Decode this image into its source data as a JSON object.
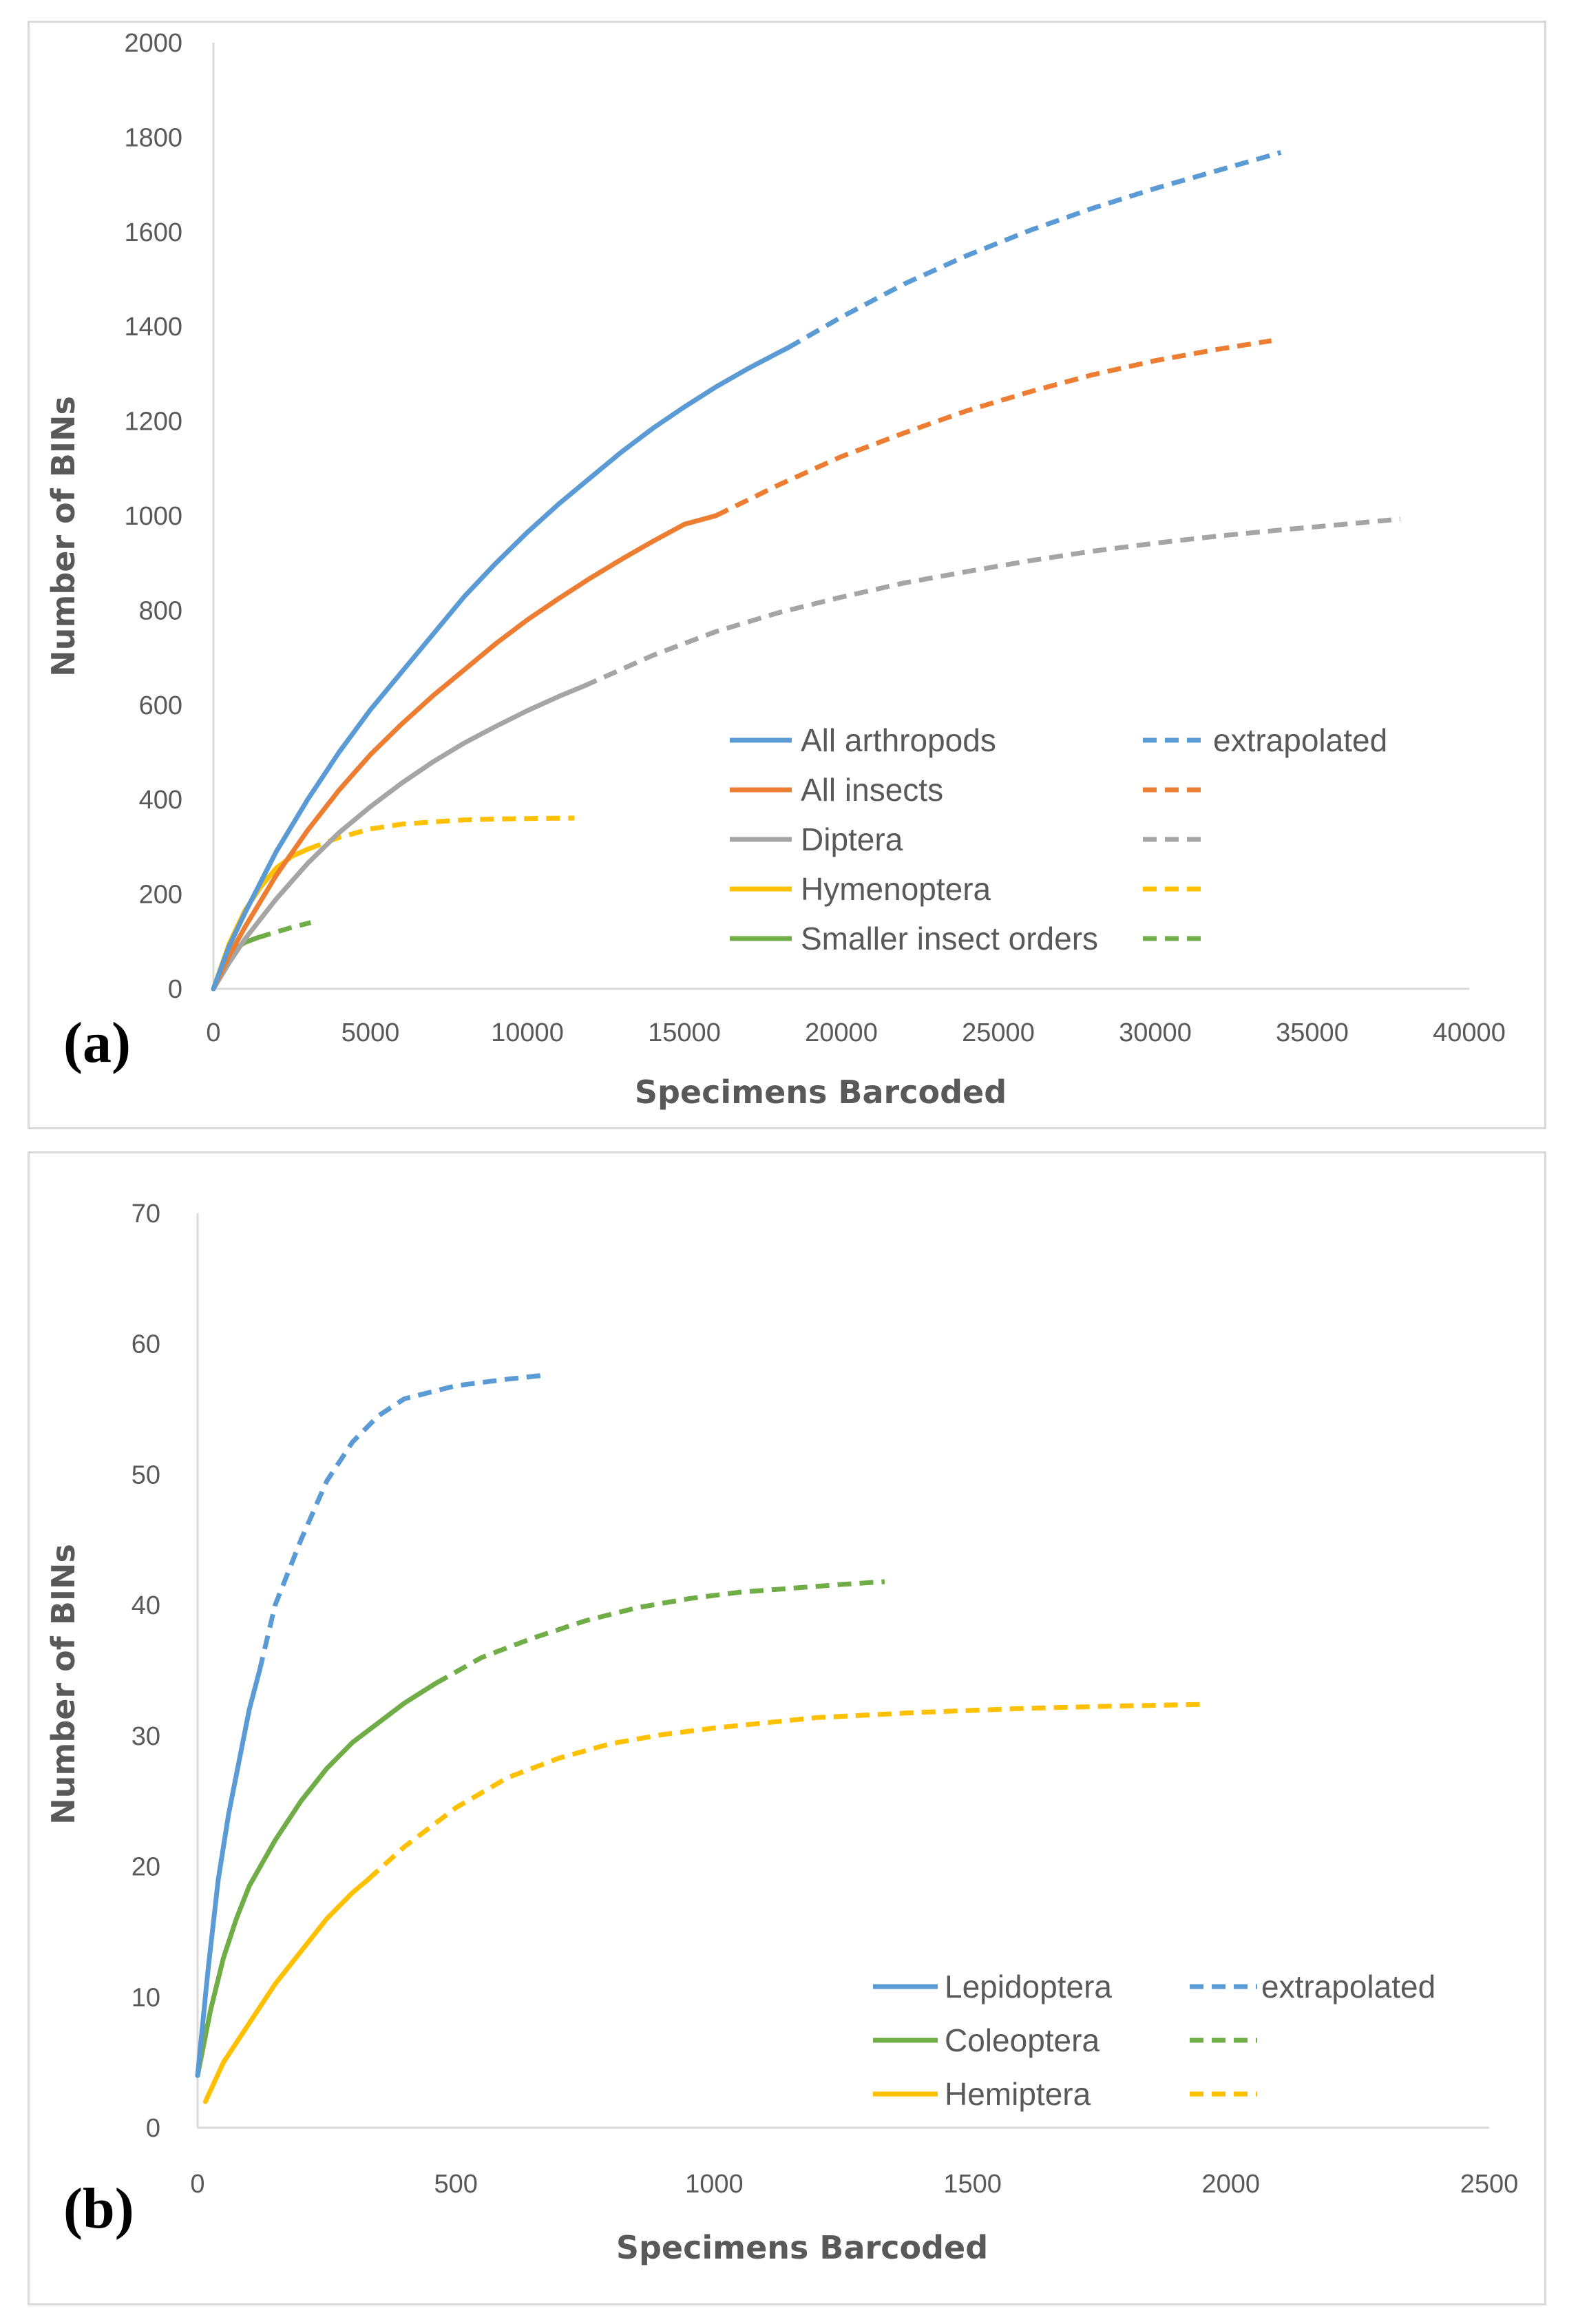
{
  "chart_data": [
    {
      "type": "line",
      "panel_label": "(a)",
      "title": "",
      "xlabel": "Specimens Barcoded",
      "ylabel": "Number of BINs",
      "xlim": [
        0,
        40000
      ],
      "ylim": [
        0,
        2000
      ],
      "xticks": [
        "0",
        "5000",
        "10000",
        "15000",
        "20000",
        "25000",
        "30000",
        "35000",
        "40000"
      ],
      "yticks": [
        "0",
        "200",
        "400",
        "600",
        "800",
        "1000",
        "1200",
        "1400",
        "1600",
        "1800",
        "2000"
      ],
      "grid": false,
      "legend_position": "bottom-right",
      "legend_extrapolated_label": "extrapolated",
      "series": [
        {
          "name": "All arthropods",
          "color": "#5b9bd5",
          "observed": [
            [
              0,
              0
            ],
            [
              500,
              90
            ],
            [
              1000,
              160
            ],
            [
              2000,
              290
            ],
            [
              3000,
              400
            ],
            [
              4000,
              500
            ],
            [
              5000,
              590
            ],
            [
              6000,
              670
            ],
            [
              7000,
              750
            ],
            [
              8000,
              830
            ],
            [
              9000,
              900
            ],
            [
              10000,
              965
            ],
            [
              11000,
              1025
            ],
            [
              12000,
              1080
            ],
            [
              13000,
              1135
            ],
            [
              14000,
              1185
            ],
            [
              15000,
              1230
            ],
            [
              16000,
              1272
            ],
            [
              17000,
              1310
            ],
            [
              18000,
              1345
            ],
            [
              18300,
              1355
            ]
          ],
          "extrapolated": [
            [
              18300,
              1355
            ],
            [
              20000,
              1420
            ],
            [
              22000,
              1490
            ],
            [
              24000,
              1550
            ],
            [
              26000,
              1603
            ],
            [
              28000,
              1650
            ],
            [
              30000,
              1692
            ],
            [
              32000,
              1730
            ],
            [
              34000,
              1768
            ]
          ]
        },
        {
          "name": "All insects",
          "color": "#ed7d31",
          "observed": [
            [
              0,
              0
            ],
            [
              500,
              70
            ],
            [
              1000,
              130
            ],
            [
              2000,
              240
            ],
            [
              3000,
              335
            ],
            [
              4000,
              420
            ],
            [
              5000,
              495
            ],
            [
              6000,
              560
            ],
            [
              7000,
              620
            ],
            [
              8000,
              675
            ],
            [
              9000,
              730
            ],
            [
              10000,
              780
            ],
            [
              11000,
              825
            ],
            [
              12000,
              868
            ],
            [
              13000,
              908
            ],
            [
              14000,
              946
            ],
            [
              15000,
              982
            ],
            [
              16000,
              1000
            ]
          ],
          "extrapolated": [
            [
              16000,
              1000
            ],
            [
              18000,
              1065
            ],
            [
              20000,
              1125
            ],
            [
              22000,
              1175
            ],
            [
              24000,
              1222
            ],
            [
              26000,
              1262
            ],
            [
              28000,
              1298
            ],
            [
              30000,
              1328
            ],
            [
              32000,
              1352
            ],
            [
              33700,
              1370
            ]
          ]
        },
        {
          "name": "Diptera",
          "color": "#a5a5a5",
          "observed": [
            [
              0,
              0
            ],
            [
              500,
              55
            ],
            [
              1000,
              105
            ],
            [
              2000,
              190
            ],
            [
              3000,
              265
            ],
            [
              4000,
              330
            ],
            [
              5000,
              385
            ],
            [
              6000,
              435
            ],
            [
              7000,
              480
            ],
            [
              8000,
              520
            ],
            [
              9000,
              555
            ],
            [
              10000,
              588
            ],
            [
              11000,
              618
            ],
            [
              11800,
              640
            ]
          ],
          "extrapolated": [
            [
              11800,
              640
            ],
            [
              14000,
              705
            ],
            [
              16000,
              755
            ],
            [
              18000,
              795
            ],
            [
              20000,
              828
            ],
            [
              22000,
              858
            ],
            [
              24000,
              882
            ],
            [
              26000,
              905
            ],
            [
              28000,
              925
            ],
            [
              30000,
              942
            ],
            [
              32000,
              957
            ],
            [
              34000,
              970
            ],
            [
              36000,
              982
            ],
            [
              37800,
              993
            ]
          ]
        },
        {
          "name": "Hymenoptera",
          "color": "#ffc000",
          "observed": [
            [
              0,
              0
            ],
            [
              500,
              95
            ],
            [
              1000,
              165
            ],
            [
              1500,
              215
            ],
            [
              2000,
              255
            ],
            [
              2500,
              280
            ],
            [
              3000,
              295
            ]
          ],
          "extrapolated": [
            [
              3000,
              295
            ],
            [
              4000,
              320
            ],
            [
              5000,
              338
            ],
            [
              6000,
              348
            ],
            [
              7000,
              353
            ],
            [
              8000,
              357
            ],
            [
              9000,
              359
            ],
            [
              10000,
              360
            ],
            [
              11500,
              361
            ]
          ]
        },
        {
          "name": "Smaller insect orders",
          "color": "#70ad47",
          "observed": [
            [
              0,
              0
            ],
            [
              300,
              55
            ],
            [
              600,
              80
            ],
            [
              1000,
              98
            ],
            [
              1400,
              108
            ]
          ],
          "extrapolated": [
            [
              1400,
              108
            ],
            [
              2000,
              120
            ],
            [
              2500,
              130
            ],
            [
              3100,
              140
            ]
          ]
        }
      ]
    },
    {
      "type": "line",
      "panel_label": "(b)",
      "title": "",
      "xlabel": "Specimens Barcoded",
      "ylabel": "Number of BINs",
      "xlim": [
        0,
        2500
      ],
      "ylim": [
        0,
        70
      ],
      "xticks": [
        "0",
        "500",
        "1000",
        "1500",
        "2000",
        "2500"
      ],
      "yticks": [
        "0",
        "10",
        "20",
        "30",
        "40",
        "50",
        "60",
        "70"
      ],
      "grid": false,
      "legend_position": "bottom-right",
      "legend_extrapolated_label": "extrapolated",
      "series": [
        {
          "name": "Lepidoptera",
          "color": "#5b9bd5",
          "observed": [
            [
              0,
              4
            ],
            [
              20,
              12
            ],
            [
              40,
              19
            ],
            [
              60,
              24
            ],
            [
              80,
              28
            ],
            [
              100,
              32
            ],
            [
              120,
              35
            ]
          ],
          "extrapolated": [
            [
              120,
              35
            ],
            [
              150,
              40
            ],
            [
              200,
              45
            ],
            [
              250,
              49.5
            ],
            [
              300,
              52.5
            ],
            [
              350,
              54.5
            ],
            [
              400,
              55.8
            ],
            [
              500,
              56.8
            ],
            [
              600,
              57.3
            ],
            [
              670,
              57.6
            ]
          ]
        },
        {
          "name": "Coleoptera",
          "color": "#70ad47",
          "observed": [
            [
              0,
              4
            ],
            [
              25,
              9
            ],
            [
              50,
              13
            ],
            [
              75,
              16
            ],
            [
              100,
              18.5
            ],
            [
              150,
              22
            ],
            [
              200,
              25
            ],
            [
              250,
              27.5
            ],
            [
              300,
              29.5
            ],
            [
              350,
              31
            ],
            [
              400,
              32.5
            ],
            [
              460,
              34
            ]
          ],
          "extrapolated": [
            [
              460,
              34
            ],
            [
              550,
              36
            ],
            [
              650,
              37.5
            ],
            [
              750,
              38.8
            ],
            [
              850,
              39.8
            ],
            [
              950,
              40.5
            ],
            [
              1050,
              41
            ],
            [
              1150,
              41.3
            ],
            [
              1250,
              41.6
            ],
            [
              1330,
              41.8
            ]
          ]
        },
        {
          "name": "Hemiptera",
          "color": "#ffc000",
          "observed": [
            [
              15,
              2
            ],
            [
              50,
              5
            ],
            [
              100,
              8
            ],
            [
              150,
              11
            ],
            [
              200,
              13.5
            ],
            [
              250,
              16
            ],
            [
              300,
              18
            ],
            [
              330,
              19
            ]
          ],
          "extrapolated": [
            [
              330,
              19
            ],
            [
              400,
              21.5
            ],
            [
              500,
              24.5
            ],
            [
              600,
              26.8
            ],
            [
              700,
              28.3
            ],
            [
              800,
              29.4
            ],
            [
              900,
              30.1
            ],
            [
              1000,
              30.6
            ],
            [
              1200,
              31.4
            ],
            [
              1400,
              31.8
            ],
            [
              1600,
              32.1
            ],
            [
              1800,
              32.3
            ],
            [
              1940,
              32.4
            ]
          ]
        }
      ]
    }
  ]
}
